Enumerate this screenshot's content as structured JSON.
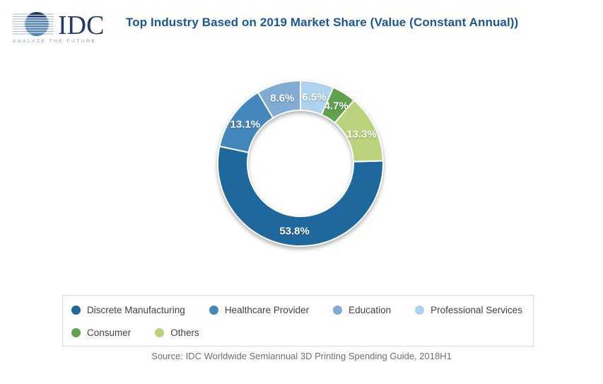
{
  "logo": {
    "brand": "IDC",
    "tagline": "ANALYZE THE FUTURE"
  },
  "header": {
    "title": "Top Industry Based on 2019 Market Share (Value (Constant Annual))"
  },
  "chart_data": {
    "type": "pie",
    "subtype": "donut",
    "title": "Top Industry Based on 2019 Market Share (Value (Constant Annual))",
    "start_angle_deg": 88.2,
    "direction": "clockwise",
    "inner_radius_ratio": 0.64,
    "legend_position": "bottom",
    "segments": [
      {
        "label": "Discrete Manufacturing",
        "value": 53.8,
        "display": "53.8%",
        "color": "#1F689E"
      },
      {
        "label": "Healthcare Provider",
        "value": 13.1,
        "display": "13.1%",
        "color": "#4487BC"
      },
      {
        "label": "Education",
        "value": 8.6,
        "display": "8.6%",
        "color": "#7FABD5"
      },
      {
        "label": "Professional Services",
        "value": 6.5,
        "display": "6.5%",
        "color": "#AFD2EE"
      },
      {
        "label": "Consumer",
        "value": 4.7,
        "display": "4.7%",
        "color": "#61A04F"
      },
      {
        "label": "Others",
        "value": 13.3,
        "display": "13.3%",
        "color": "#BCD37E"
      }
    ],
    "slice_label_color": "#FFFFFF",
    "legend_wrap_after": 4
  },
  "footer": {
    "source": "Source: IDC Worldwide Semiannual 3D Printing Spending Guide, 2018H1"
  },
  "colors": {
    "title_text": "#1A579A",
    "source_text": "#6F6F6F",
    "legend_border": "#D9D9D9",
    "logo_navy": "#22396B",
    "logo_blue": "#4F83B9",
    "logo_tagline": "#8599B4"
  }
}
